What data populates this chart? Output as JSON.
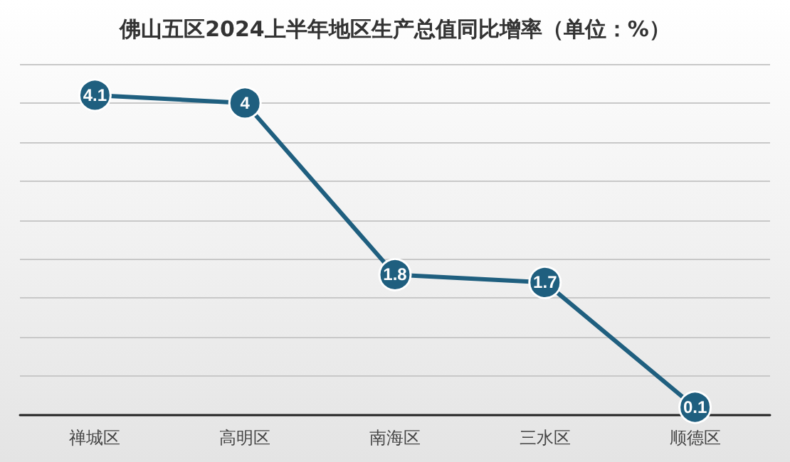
{
  "chart_data": {
    "type": "line",
    "title": "佛山五区2024上半年地区生产总值同比增率（单位：%）",
    "categories": [
      "禅城区",
      "高明区",
      "南海区",
      "三水区",
      "顺德区"
    ],
    "values": [
      4.1,
      4,
      1.8,
      1.7,
      0.1
    ],
    "color": "#1f5f7f",
    "data_labels": true,
    "marker": "circle",
    "line_style": "solid",
    "grid": "y",
    "tick_labels": "x",
    "ylim": [
      0,
      4.5
    ],
    "yticks": [
      {
        "value": 0,
        "label": null
      },
      {
        "value": 0.5,
        "label": null
      },
      {
        "value": 1,
        "label": null
      },
      {
        "value": 1.5,
        "label": null
      },
      {
        "value": 2,
        "label": null
      },
      {
        "value": 2.5,
        "label": null
      },
      {
        "value": 3,
        "label": null
      },
      {
        "value": 3.5,
        "label": null
      },
      {
        "value": 4,
        "label": null
      },
      {
        "value": 4.5,
        "label": null
      }
    ]
  }
}
